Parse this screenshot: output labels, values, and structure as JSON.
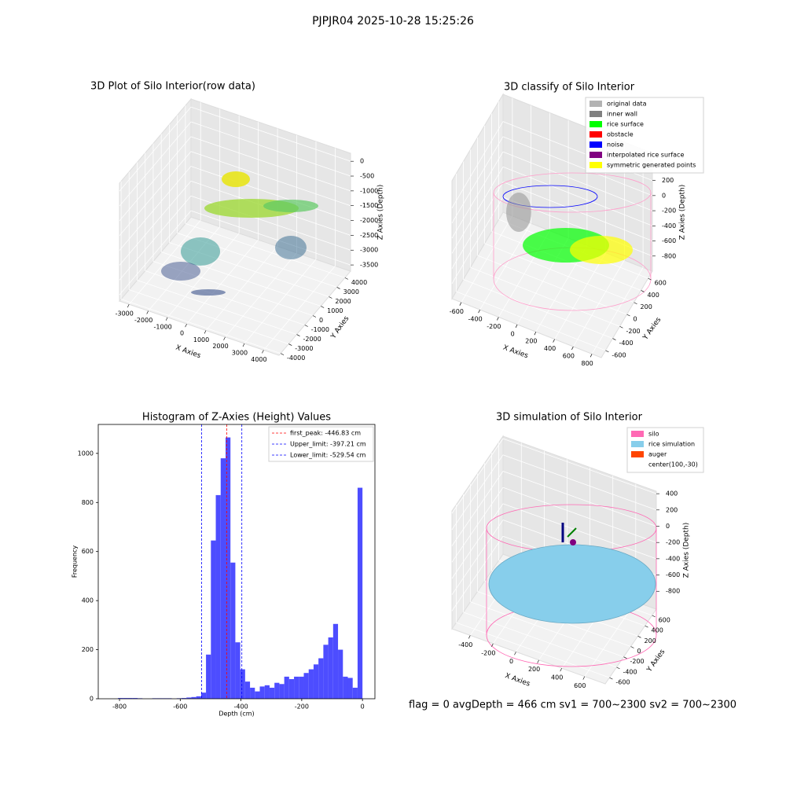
{
  "title": "PJPJR04 2025-10-28 15:25:26",
  "footer": "flag = 0     avgDepth = 466 cm  sv1 = 700~2300  sv2 = 700~2300",
  "chart_data": [
    {
      "type": "scatter3d",
      "title": "3D Plot of Silo Interior(row data)",
      "xlabel": "X Axies",
      "ylabel": "Y Axies",
      "zlabel": "Z Axies (Depth)",
      "xlim": [
        -3500,
        4800
      ],
      "ylim": [
        -4200,
        4700
      ],
      "zlim": [
        -3710,
        270
      ],
      "xticks": [
        -3000,
        -2000,
        -1000,
        0,
        1000,
        2000,
        3000,
        4000
      ],
      "yticks": [
        -4000,
        -3000,
        -2000,
        -1000,
        0,
        1000,
        2000,
        3000,
        4000
      ],
      "zticks": [
        -3500,
        -3000,
        -2500,
        -2000,
        -1500,
        -1000,
        -500,
        0
      ]
    },
    {
      "type": "scatter3d",
      "title": "3D classify of Silo Interior",
      "xlabel": "X Axies",
      "ylabel": "Y Axies",
      "zlabel": "Z Axies (Depth)",
      "xlim": [
        -700,
        900
      ],
      "ylim": [
        -720,
        720
      ],
      "zlim": [
        -1000,
        560
      ],
      "xticks": [
        -600,
        -400,
        -200,
        0,
        200,
        400,
        600,
        800
      ],
      "yticks": [
        -600,
        -400,
        -200,
        0,
        200,
        400,
        600
      ],
      "zticks": [
        -800,
        -600,
        -400,
        -200,
        0,
        200
      ],
      "series": [
        {
          "name": "original data",
          "color": "#b3b3b3"
        },
        {
          "name": "inner wall",
          "color": "#808080"
        },
        {
          "name": "rice surface",
          "color": "#00ff00"
        },
        {
          "name": "obstacle",
          "color": "#ff0000"
        },
        {
          "name": "noise",
          "color": "#0000ff"
        },
        {
          "name": "interpolated rice surface",
          "color": "#800080"
        },
        {
          "name": "symmetric generated points",
          "color": "#ffff00"
        }
      ]
    },
    {
      "type": "histogram",
      "title": "Histogram of Z-Axies (Height) Values",
      "xlabel": "Depth (cm)",
      "ylabel": "Frequency",
      "color": "#4d4dff",
      "xlim": [
        -870,
        41
      ],
      "ylim": [
        0,
        1118
      ],
      "xticks": [
        -800,
        -600,
        -400,
        -200,
        0
      ],
      "yticks": [
        0,
        200,
        400,
        600,
        800,
        1000
      ],
      "bins": [
        -805,
        -788.9,
        -772.8,
        -756.7,
        -740.6,
        -724.5,
        -708.4,
        -692.3,
        -676.2,
        -660.1,
        -644,
        -627.9,
        -611.8,
        -595.7,
        -579.6,
        -563.5,
        -547.4,
        -531.3,
        -515.2,
        -499.1,
        -483,
        -466.9,
        -450.8,
        -434.7,
        -418.6,
        -402.5,
        -386.4,
        -370.3,
        -354.2,
        -338.1,
        -322,
        -305.9,
        -289.8,
        -273.7,
        -257.6,
        -241.5,
        -225.4,
        -209.3,
        -193.2,
        -177.1,
        -161,
        -144.9,
        -128.8,
        -112.7,
        -96.6,
        -80.5,
        -64.4,
        -48.3,
        -32.2,
        -16.1,
        0
      ],
      "values": [
        3,
        3,
        3,
        3,
        2,
        0,
        0,
        2,
        2,
        2,
        2,
        0,
        2,
        3,
        5,
        7,
        10,
        25,
        180,
        645,
        830,
        980,
        1065,
        555,
        230,
        120,
        70,
        45,
        30,
        50,
        55,
        45,
        65,
        60,
        90,
        80,
        90,
        90,
        105,
        120,
        140,
        165,
        220,
        250,
        305,
        200,
        90,
        85,
        45,
        860
      ],
      "vlines": [
        {
          "label": "first_peak: -446.83 cm",
          "value": -446.83,
          "color": "#ff0000"
        },
        {
          "label": "Upper_limit: -397.21 cm",
          "value": -397.21,
          "color": "#0000ff"
        },
        {
          "label": "Lower_limit: -529.54 cm",
          "value": -529.54,
          "color": "#0000ff"
        }
      ]
    },
    {
      "type": "scatter3d",
      "title": "3D simulation of Silo Interior",
      "xlabel": "X Axies",
      "ylabel": "Y Axies",
      "zlabel": "Z Axies (Depth)",
      "xlim": [
        -560,
        780
      ],
      "ylim": [
        -720,
        720
      ],
      "zlim": [
        -1020,
        430
      ],
      "xticks": [
        -400,
        -200,
        0,
        200,
        400,
        600
      ],
      "yticks": [
        -600,
        -400,
        -200,
        0,
        200,
        400,
        600
      ],
      "zticks": [
        -800,
        -600,
        -400,
        -200,
        0,
        200,
        400
      ],
      "series": [
        {
          "name": "silo",
          "color": "#ff69b4"
        },
        {
          "name": "rice simulation",
          "color": "#87ceeb"
        },
        {
          "name": "auger",
          "color": "#ff4500"
        },
        {
          "name": "center(100,-30)"
        }
      ]
    }
  ]
}
